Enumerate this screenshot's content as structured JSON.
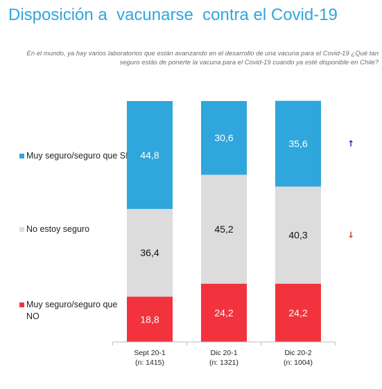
{
  "title": "Disposición a  vacunarse  contra el Covid-19",
  "subtitle": "En el mundo, ya hay varios laboratorios que están avanzando en el desarrollo de una vacuna para el Covid-19 ¿Qué tan seguro estás de ponerte la vacuna para el Covid-19 cuando ya esté disponible en Chile?",
  "legend": [
    {
      "label": "Muy seguro/seguro que SI",
      "color": "#2fa6dc"
    },
    {
      "label": "No estoy seguro",
      "color": "#dcdcdc"
    },
    {
      "label": "Muy seguro/seguro que NO",
      "color": "#f2333e"
    }
  ],
  "chart_data": {
    "type": "bar",
    "stacked": true,
    "categories": [
      [
        "Sept 20-1",
        "(n: 1415)"
      ],
      [
        "Dic 20-1",
        "(n: 1321)"
      ],
      [
        "Dic 20-2",
        "(n: 1004)"
      ]
    ],
    "series": [
      {
        "name": "Muy seguro/seguro que NO",
        "color": "#f2333e",
        "label_color": "#ffffff",
        "values": [
          18.8,
          24.2,
          24.2
        ],
        "labels": [
          "18,8",
          "24,2",
          "24,2"
        ]
      },
      {
        "name": "No estoy seguro",
        "color": "#dcdcdc",
        "label_color": "#111111",
        "values": [
          36.4,
          45.2,
          40.3
        ],
        "labels": [
          "36,4",
          "45,2",
          "40,3"
        ]
      },
      {
        "name": "Muy seguro/seguro que SI",
        "color": "#2fa6dc",
        "label_color": "#ffffff",
        "values": [
          44.8,
          30.6,
          35.6
        ],
        "labels": [
          "44,8",
          "30,6",
          "35,6"
        ]
      }
    ],
    "ylim": [
      0,
      100
    ],
    "trend_arrows": [
      {
        "series": "Muy seguro/seguro que SI",
        "direction": "up",
        "symbol": "↑",
        "color": "#2222cc"
      },
      {
        "series": "No estoy seguro",
        "direction": "down",
        "symbol": "↓",
        "color": "#e0302a"
      }
    ]
  }
}
